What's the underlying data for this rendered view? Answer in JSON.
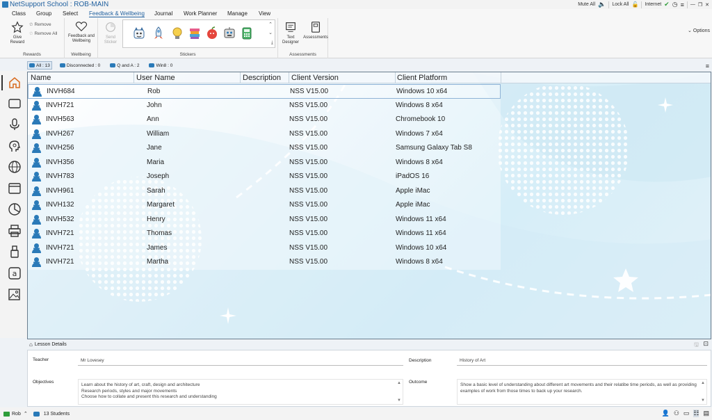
{
  "window": {
    "title": "NetSupport School : ROB-MAIN",
    "controls": {
      "minimize": "—",
      "restore": "❐",
      "close": "✕"
    },
    "options_label": "Options"
  },
  "topright": {
    "mute_all": "Mute All",
    "lock_all": "Lock All",
    "internet": "Internet"
  },
  "menu": [
    "Class",
    "Group",
    "Select",
    "Feedback & Wellbeing",
    "Journal",
    "Work Planner",
    "Manage",
    "View"
  ],
  "ribbon": {
    "rewards": {
      "give": "Give Reward",
      "remove": "Remove",
      "remove_all": "Remove All",
      "label": "Rewards"
    },
    "wellbeing": {
      "feedback": "Feedback and Wellbeing",
      "label": "Wellbeing"
    },
    "stickers": {
      "send": "Send Sticker",
      "label": "Stickers"
    },
    "assessments": {
      "text_designer": "Text Designer",
      "assessments": "Assessments",
      "label": "Assessments"
    }
  },
  "tabs": [
    {
      "label": "All : 13"
    },
    {
      "label": "Disconnected : 0"
    },
    {
      "label": "Q and A : 2"
    },
    {
      "label": "Win8 : 0"
    }
  ],
  "columns": {
    "name": "Name",
    "user": "User Name",
    "desc": "Description",
    "version": "Client Version",
    "platform": "Client Platform"
  },
  "rows": [
    {
      "name": "INVH684",
      "user": "Rob",
      "desc": "",
      "version": "NSS V15.00",
      "platform": "Windows 10 x64"
    },
    {
      "name": "INVH721",
      "user": "John",
      "desc": "",
      "version": "NSS V15.00",
      "platform": "Windows 8 x64"
    },
    {
      "name": "INVH563",
      "user": "Ann",
      "desc": "",
      "version": "NSS V15.00",
      "platform": "Chromebook 10"
    },
    {
      "name": "INVH267",
      "user": "William",
      "desc": "",
      "version": "NSS V15.00",
      "platform": "Windows 7 x64"
    },
    {
      "name": "INVH256",
      "user": "Jane",
      "desc": "",
      "version": "NSS V15.00",
      "platform": "Samsung Galaxy Tab S8"
    },
    {
      "name": "INVH356",
      "user": "Maria",
      "desc": "",
      "version": "NSS V15.00",
      "platform": "Windows 8 x64"
    },
    {
      "name": "INVH783",
      "user": "Joseph",
      "desc": "",
      "version": "NSS V15.00",
      "platform": "iPadOS 16"
    },
    {
      "name": "INVH961",
      "user": "Sarah",
      "desc": "",
      "version": "NSS V15.00",
      "platform": "Apple iMac"
    },
    {
      "name": "INVH132",
      "user": "Margaret",
      "desc": "",
      "version": "NSS V15.00",
      "platform": "Apple iMac"
    },
    {
      "name": "INVH532",
      "user": "Henry",
      "desc": "",
      "version": "NSS V15.00",
      "platform": "Windows 11 x64"
    },
    {
      "name": "INVH721",
      "user": "Thomas",
      "desc": "",
      "version": "NSS V15.00",
      "platform": "Windows 11 x64"
    },
    {
      "name": "INVH721",
      "user": "James",
      "desc": "",
      "version": "NSS V15.00",
      "platform": "Windows 10 x64"
    },
    {
      "name": "INVH721",
      "user": "Martha",
      "desc": "",
      "version": "NSS V15.00",
      "platform": "Windows 8 x64"
    }
  ],
  "lesson": {
    "title": "Lesson Details",
    "teacher_label": "Teacher",
    "teacher": "Mr Lovesey",
    "description_label": "Description",
    "description": "History of Art",
    "objectives_label": "Objectives",
    "objectives": [
      "Learn about the history of art, craft, design and architecture",
      "Research periods, styles and major movements",
      "Choose how to collate and present this research and understanding"
    ],
    "outcome_label": "Outcome",
    "outcome": "Show a basic level of understanding about different art movements and their relatibe time periods, as well as providing examples of work from those times to back up your research."
  },
  "status": {
    "user": "Rob",
    "students": "13  Students"
  },
  "colors": {
    "accent": "#1f5f9e",
    "student_icon": "#2a7ab8",
    "selection": "#8fb3d6"
  }
}
